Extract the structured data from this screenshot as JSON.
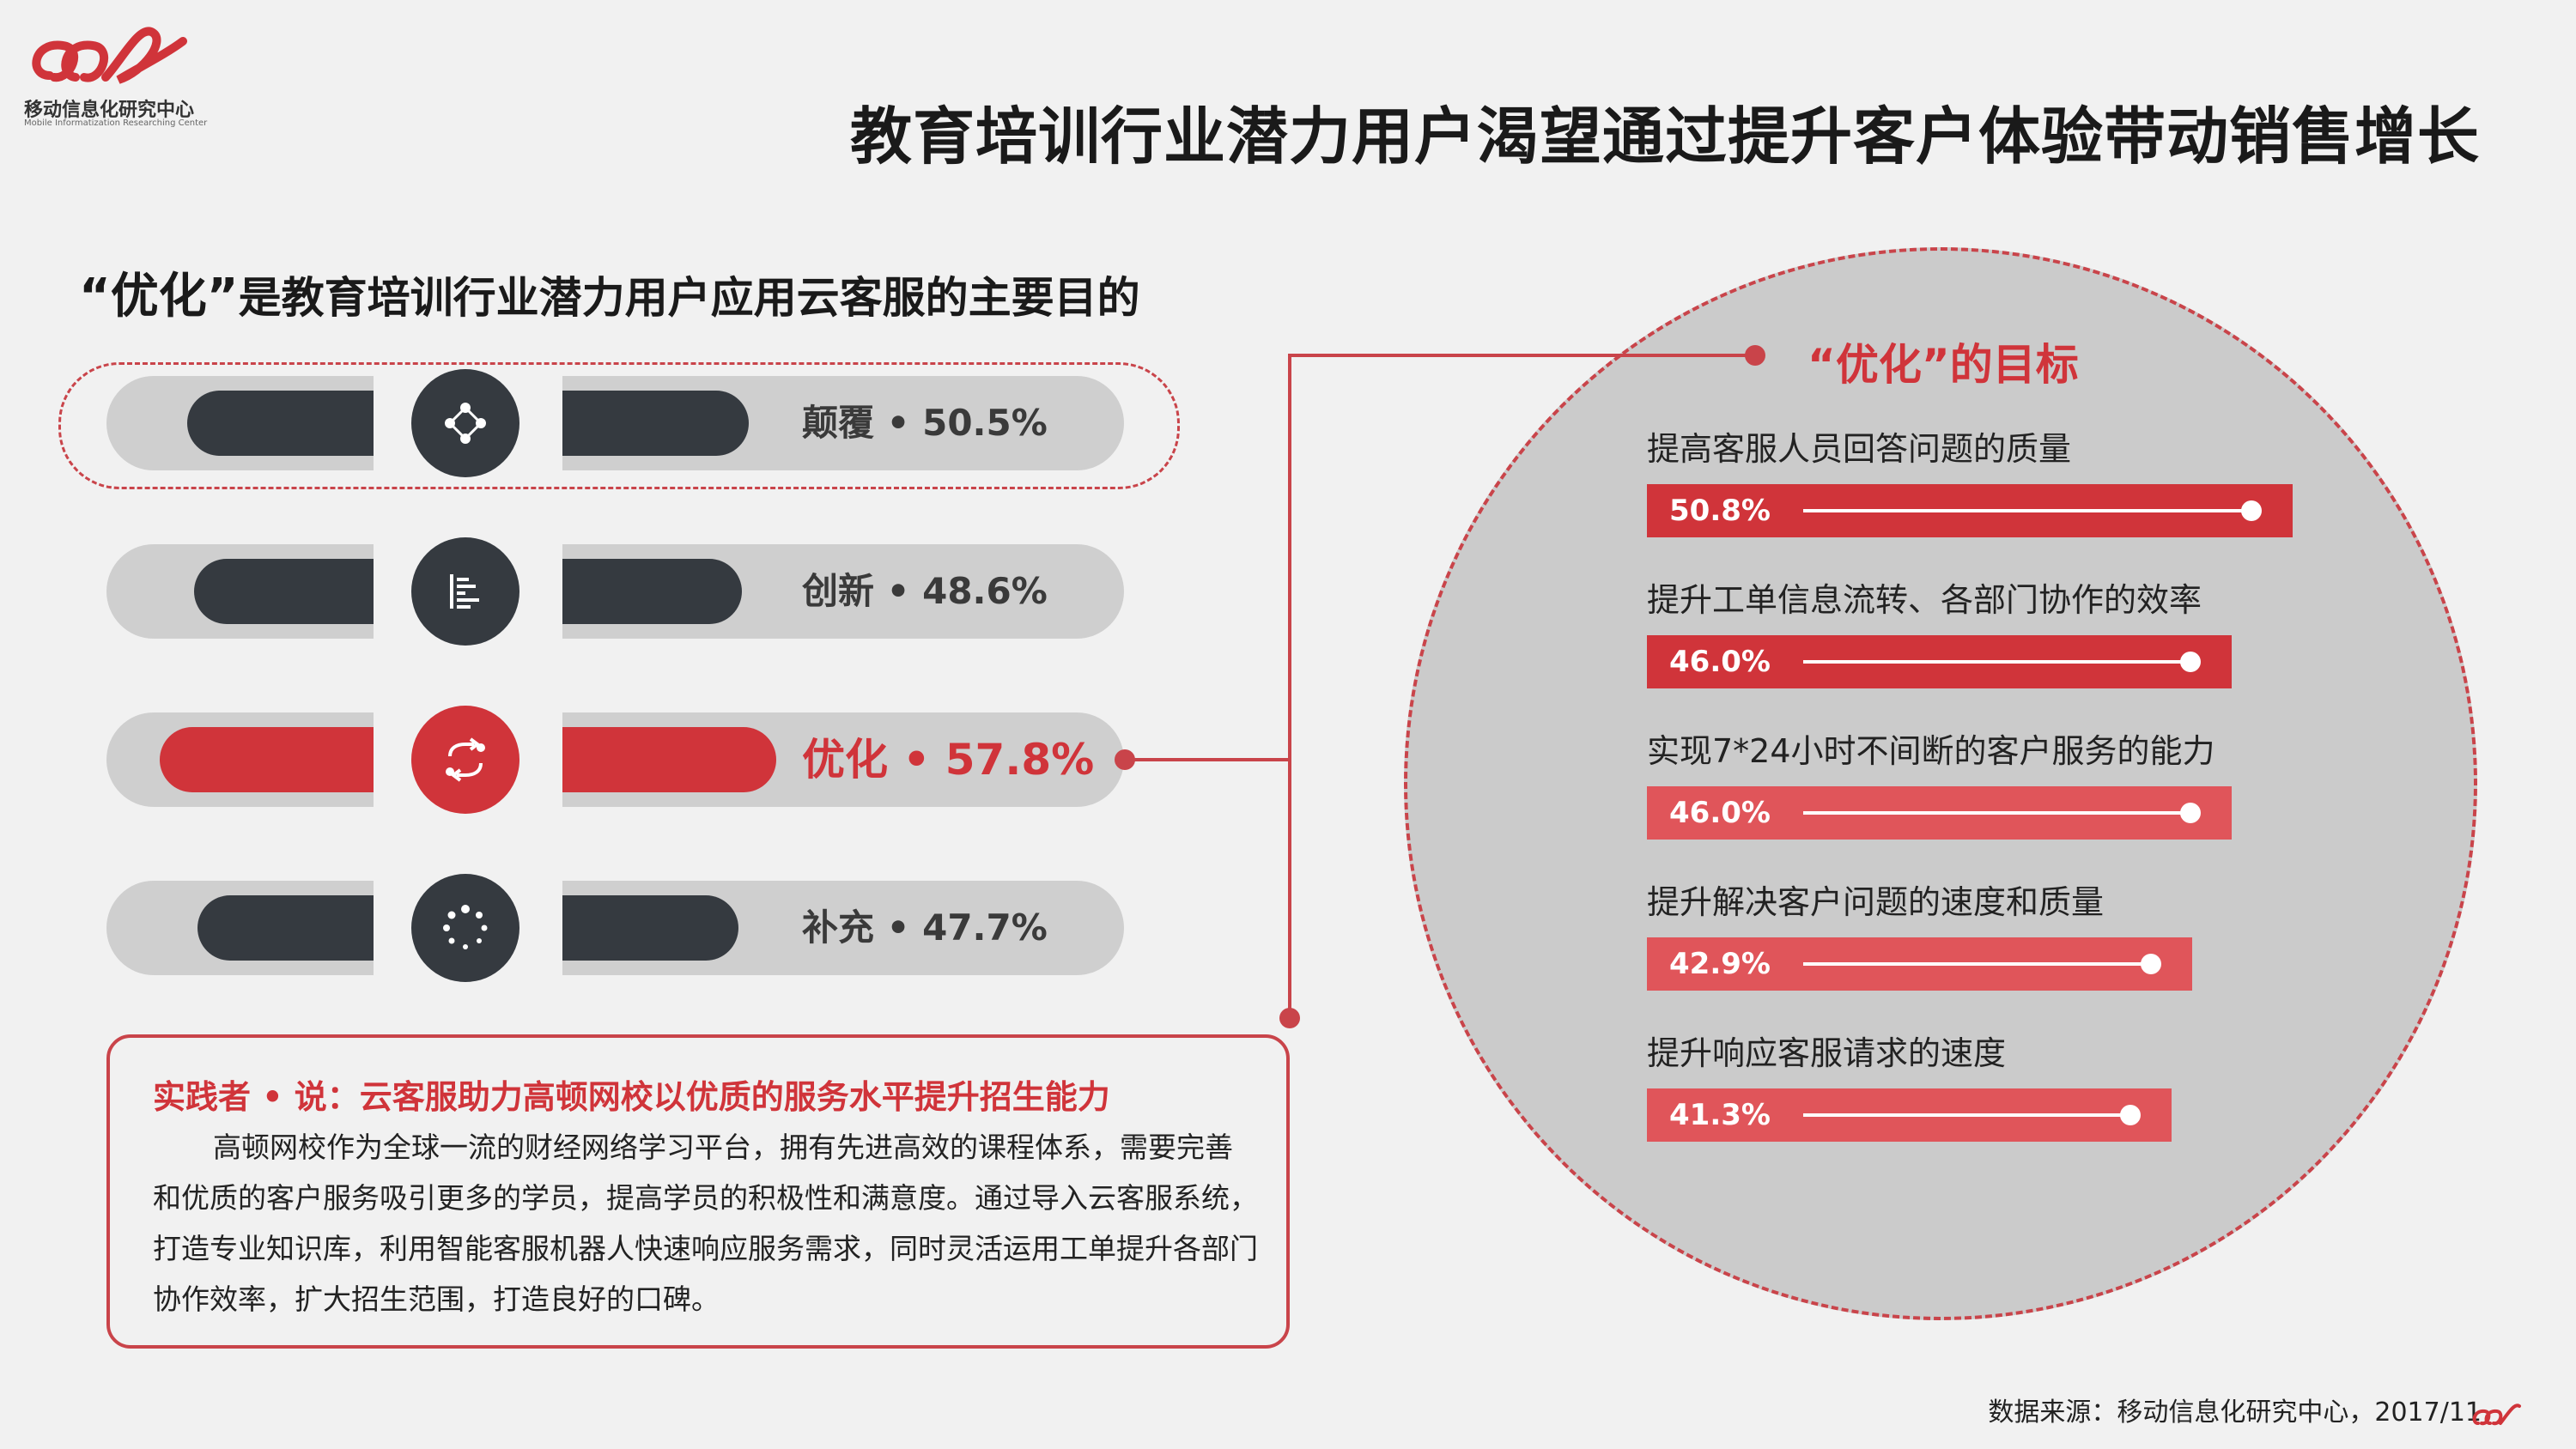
{
  "header": {
    "logo_text": "移动信息化研究中心",
    "logo_sub": "Mobile Informatization Researching Center",
    "title": "教育培训行业潜力用户渴望通过提升客户体验带动销售增长"
  },
  "left": {
    "subtitle_quote": "“优化”",
    "subtitle_rest": "是教育培训行业潜力用户应用云客服的主要目的"
  },
  "colors": {
    "accent": "#d0343a",
    "dark": "#353a40",
    "track": "#cfcfcf",
    "circle": "#cbcbcb"
  },
  "chart_data": [
    {
      "type": "bar",
      "categories": [
        "颠覆",
        "创新",
        "优化",
        "补充"
      ],
      "values": [
        50.5,
        48.6,
        57.8,
        47.7
      ],
      "labels": [
        "颠覆 • 50.5%",
        "创新 • 48.6%",
        "优化 • 57.8%",
        "补充 • 47.7%"
      ],
      "highlight": "优化",
      "icons": [
        "network-icon",
        "align-left-icon",
        "refresh-icon",
        "loading-icon"
      ]
    },
    {
      "type": "bar",
      "title": "“优化”的目标",
      "categories": [
        "提高客服人员回答问题的质量",
        "提升工单信息流转、各部门协作的效率",
        "实现7*24小时不间断的客户服务的能力",
        "提升解决客户问题的速度和质量",
        "提升响应客服请求的速度"
      ],
      "values": [
        50.8,
        46.0,
        46.0,
        42.9,
        41.3
      ],
      "labels": [
        "50.8%",
        "46.0%",
        "46.0%",
        "42.9%",
        "41.3%"
      ]
    }
  ],
  "box": {
    "title": "实践者 • 说：云客服助力高顿网校以优质的服务水平提升招生能力",
    "body": "高顿网校作为全球一流的财经网络学习平台，拥有先进高效的课程体系，需要完善和优质的客户服务吸引更多的学员，提高学员的积极性和满意度。通过导入云客服系统，打造专业知识库，利用智能客服机器人快速响应服务需求，同时灵活运用工单提升各部门协作效率，扩大招生范围，打造良好的口碑。"
  },
  "footer": {
    "source": "数据来源：移动信息化研究中心，2017/11"
  }
}
